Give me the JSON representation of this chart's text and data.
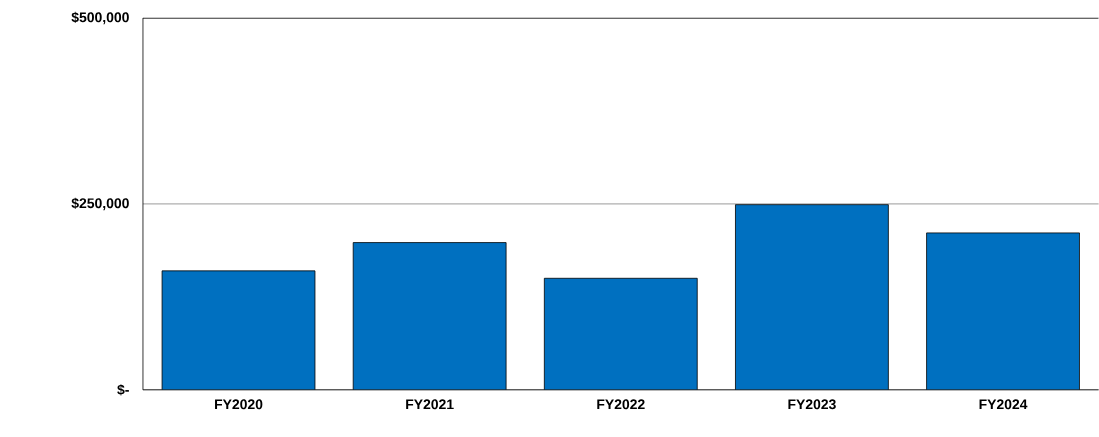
{
  "chart_data": {
    "type": "bar",
    "categories": [
      "FY2020",
      "FY2021",
      "FY2022",
      "FY2023",
      "FY2024"
    ],
    "values": [
      160000,
      198000,
      150000,
      249000,
      211000
    ],
    "color": "#0070c0",
    "ylim": [
      0,
      500000
    ],
    "yticks": [
      {
        "value": 0,
        "label": "$-"
      },
      {
        "value": 250000,
        "label": "$250,000"
      },
      {
        "value": 500000,
        "label": "$500,000"
      }
    ],
    "grid": "y"
  }
}
